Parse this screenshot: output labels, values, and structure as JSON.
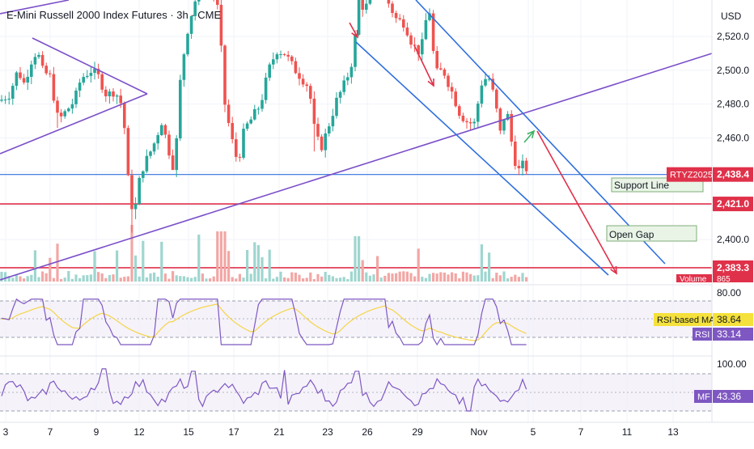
{
  "header": {
    "title": "E-Mini Russell 2000 Index Futures · 3h · CME",
    "currency": "USD"
  },
  "colors": {
    "up": "#26a69a",
    "down": "#ef5350",
    "trend_purple": "#7b4fc9",
    "channel_blue": "#2f6fde",
    "red_line": "#e0314a",
    "arrow_green": "#3bb263",
    "rsi_line": "#7e57c2",
    "rsi_ma": "#f5d546"
  },
  "chart_data": [
    {
      "type": "candlestick",
      "symbol": "RTYZ2025",
      "interval": "3h",
      "x_tick_labels": [
        "3",
        "7",
        "9",
        "12",
        "15",
        "17",
        "21",
        "23",
        "26",
        "29",
        "Nov",
        "3",
        "5",
        "7",
        "11",
        "13"
      ],
      "y_axis": {
        "ticks": [
          2520.0,
          2500.0,
          2480.0,
          2460.0,
          2400.0
        ],
        "range": [
          2378,
          2545
        ]
      },
      "price_labels": [
        {
          "name": "RTYZ2025",
          "value": 2438.4,
          "text": "2,438.4"
        },
        {
          "name": "",
          "value": 2421.0,
          "text": "2,421.0"
        },
        {
          "name": "",
          "value": 2383.3,
          "text": "2,383.3"
        }
      ],
      "horizontal_levels": [
        {
          "value": 2438.4,
          "style": "blue"
        },
        {
          "value": 2421.0,
          "style": "red"
        },
        {
          "value": 2383.3,
          "style": "red"
        }
      ],
      "annotations": [
        {
          "text": "Support Line",
          "anchor_price": 2435
        },
        {
          "text": "Open Gap",
          "anchor_price": 2407
        }
      ],
      "volume_label": "Volume",
      "volume_value": "865"
    },
    {
      "type": "line",
      "name": "RSI",
      "ylim": [
        0,
        100
      ],
      "y_tick_labels": [
        "80.00"
      ],
      "series": [
        {
          "name": "RSI-based MA",
          "last": 38.64,
          "last_text": "38.64"
        },
        {
          "name": "RSI",
          "last": 33.14,
          "last_text": "33.14"
        }
      ]
    },
    {
      "type": "line",
      "name": "MF",
      "ylim": [
        0,
        100
      ],
      "y_tick_labels": [
        "100.00"
      ],
      "series": [
        {
          "name": "MF",
          "last": 43.36,
          "last_text": "43.36"
        }
      ]
    }
  ]
}
